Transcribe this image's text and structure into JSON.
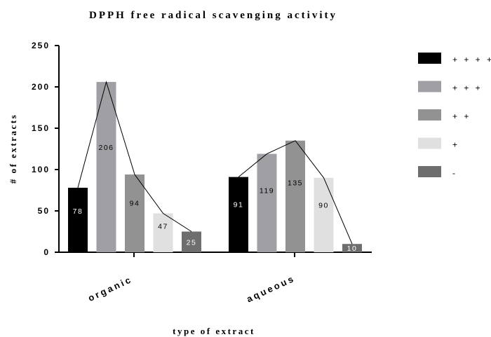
{
  "chart_data": {
    "type": "bar",
    "title": "DPPH free radical scavenging activity",
    "xlabel": "type of extract",
    "ylabel": "# of extracts",
    "ylim": [
      0,
      250
    ],
    "yticks": [
      "0",
      "50",
      "100",
      "150",
      "200",
      "250"
    ],
    "categories": [
      "organic",
      "aqueous"
    ],
    "series": [
      {
        "name": "+ + + +",
        "color": "#000000",
        "values": [
          78,
          91
        ],
        "labels": [
          "78",
          "91"
        ],
        "label_color": "#ffffff"
      },
      {
        "name": "+ + +",
        "color": "#a0a0a4",
        "values": [
          206,
          119
        ],
        "labels": [
          "206",
          "119"
        ],
        "label_color": "#000000"
      },
      {
        "name": "+ +",
        "color": "#929292",
        "values": [
          94,
          135
        ],
        "labels": [
          "94",
          "135"
        ],
        "label_color": "#000000"
      },
      {
        "name": "+",
        "color": "#e0e0e0",
        "values": [
          47,
          90
        ],
        "labels": [
          "47",
          "90"
        ],
        "label_color": "#000000"
      },
      {
        "name": "-",
        "color": "#6e6e6e",
        "values": [
          25,
          10
        ],
        "labels": [
          "25",
          "10"
        ],
        "label_color": "#ffffff"
      }
    ],
    "trend_line": true,
    "grid": false,
    "legend_position": "right"
  }
}
